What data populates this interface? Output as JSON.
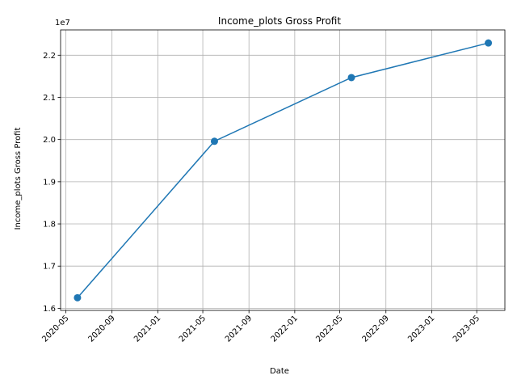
{
  "chart_data": {
    "type": "line",
    "title": "Income_plots Gross Profit",
    "xlabel": "Date",
    "ylabel": "Income_plots Gross Profit",
    "y_offset_label": "1e7",
    "x": [
      "2020-06-01",
      "2021-06-01",
      "2022-06-01",
      "2023-06-01"
    ],
    "y": [
      16250000,
      19960000,
      21470000,
      22290000
    ],
    "xticks": [
      "2020-05",
      "2020-09",
      "2021-01",
      "2021-05",
      "2021-09",
      "2022-01",
      "2022-05",
      "2022-09",
      "2023-01",
      "2023-05"
    ],
    "yticks": [
      16000000,
      17000000,
      18000000,
      19000000,
      20000000,
      21000000,
      22000000
    ],
    "ytick_labels": [
      "1.6",
      "1.7",
      "1.8",
      "1.9",
      "2.0",
      "2.1",
      "2.2"
    ],
    "xlim": [
      "2020-04-17",
      "2023-07-15"
    ],
    "ylim": [
      15950000,
      22600000
    ],
    "grid": true,
    "line_color": "#1f77b4",
    "marker": "circle"
  }
}
